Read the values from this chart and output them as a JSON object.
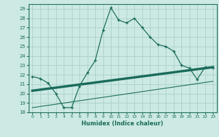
{
  "xlabel": "Humidex (Indice chaleur)",
  "xlim": [
    -0.5,
    23.5
  ],
  "ylim": [
    18,
    29.5
  ],
  "yticks": [
    18,
    19,
    20,
    21,
    22,
    23,
    24,
    25,
    26,
    27,
    28,
    29
  ],
  "xticks": [
    0,
    1,
    2,
    3,
    4,
    5,
    6,
    7,
    8,
    9,
    10,
    11,
    12,
    13,
    14,
    15,
    16,
    17,
    18,
    19,
    20,
    21,
    22,
    23
  ],
  "bg_color": "#cce9e3",
  "grid_color": "#aacfc8",
  "line_color": "#1a6b5a",
  "curve_x": [
    0,
    1,
    2,
    3,
    4,
    5,
    6,
    7,
    8,
    9,
    10,
    11,
    12,
    13,
    14,
    15,
    16,
    17,
    18,
    19,
    20,
    21,
    22,
    23
  ],
  "curve_y": [
    21.8,
    21.6,
    21.1,
    20.0,
    18.5,
    18.5,
    20.8,
    22.2,
    23.5,
    26.7,
    29.1,
    27.8,
    27.5,
    28.0,
    27.0,
    26.0,
    25.2,
    25.0,
    24.5,
    23.0,
    22.7,
    21.5,
    22.8,
    22.7
  ],
  "trend1_x": [
    0,
    23
  ],
  "trend1_y": [
    20.3,
    22.8
  ],
  "trend2_x": [
    0,
    23
  ],
  "trend2_y": [
    18.5,
    21.3
  ]
}
